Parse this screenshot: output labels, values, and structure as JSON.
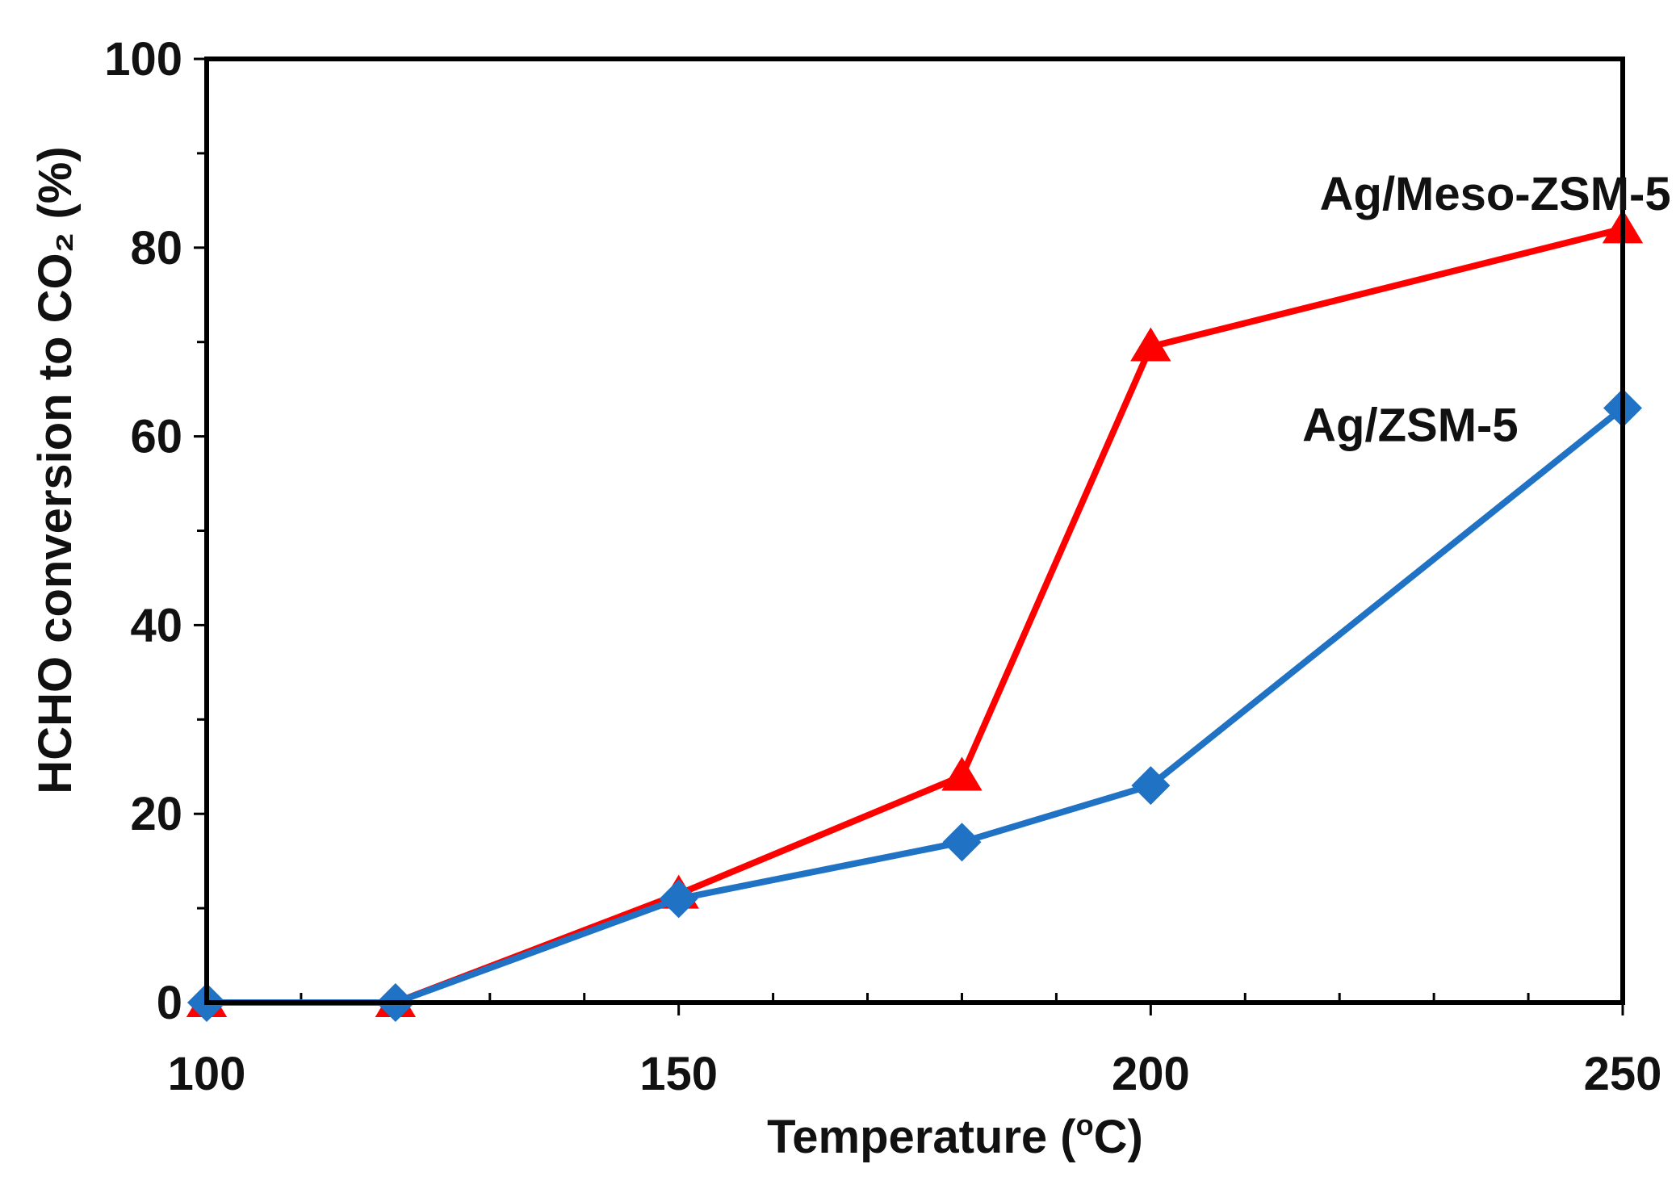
{
  "chart_data": {
    "type": "line",
    "title": "",
    "xlabel": "Temperature (",
    "xlabel_superscript": "o",
    "xlabel_suffix": "C)",
    "ylabel": "HCHO conversion to CO₂ (%)",
    "xlim": [
      100,
      250
    ],
    "ylim": [
      0,
      100
    ],
    "x_ticks": [
      100,
      150,
      200,
      250
    ],
    "x_tick_labels": [
      "100",
      "150",
      "200",
      "250"
    ],
    "x_minor_step": 10,
    "y_ticks": [
      0,
      20,
      40,
      60,
      80,
      100
    ],
    "y_tick_labels": [
      "0",
      "20",
      "40",
      "60",
      "80",
      "100"
    ],
    "y_minor_step": 10,
    "grid": false,
    "series": [
      {
        "name": "Ag/Meso-ZSM-5",
        "marker": "triangle",
        "color": "#ff0000",
        "x": [
          100,
          120,
          150,
          180,
          200,
          250
        ],
        "y": [
          0,
          0,
          11.5,
          24,
          69.5,
          82
        ]
      },
      {
        "name": "Ag/ZSM-5",
        "marker": "diamond",
        "color": "#1f72c4",
        "x": [
          100,
          120,
          150,
          180,
          200,
          250
        ],
        "y": [
          0,
          0,
          11,
          17,
          23,
          63
        ]
      }
    ],
    "annotations": [
      {
        "text": "Ag/Meso-ZSM-5",
        "series": "Ag/Meso-ZSM-5"
      },
      {
        "text": "Ag/ZSM-5",
        "series": "Ag/ZSM-5"
      }
    ]
  }
}
